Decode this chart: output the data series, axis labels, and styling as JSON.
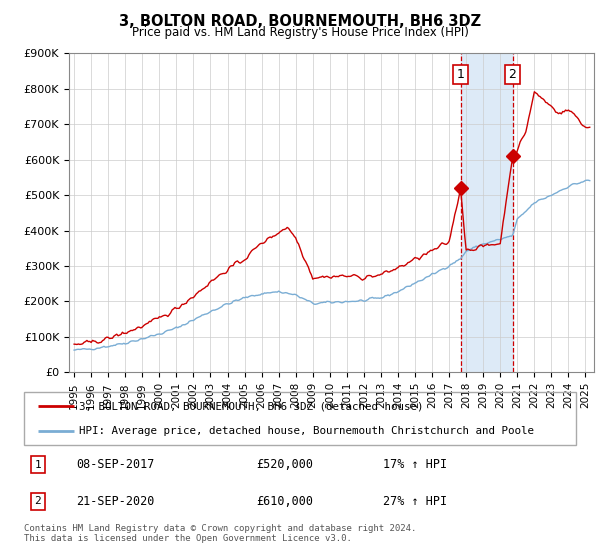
{
  "title": "3, BOLTON ROAD, BOURNEMOUTH, BH6 3DZ",
  "subtitle": "Price paid vs. HM Land Registry's House Price Index (HPI)",
  "legend_line1": "3, BOLTON ROAD, BOURNEMOUTH, BH6 3DZ (detached house)",
  "legend_line2": "HPI: Average price, detached house, Bournemouth Christchurch and Poole",
  "footer": "Contains HM Land Registry data © Crown copyright and database right 2024.\nThis data is licensed under the Open Government Licence v3.0.",
  "transaction1_date": "08-SEP-2017",
  "transaction1_price": 520000,
  "transaction1_label": "17% ↑ HPI",
  "transaction2_date": "21-SEP-2020",
  "transaction2_price": 610000,
  "transaction2_label": "27% ↑ HPI",
  "red_color": "#cc0000",
  "blue_color": "#7aadd4",
  "highlight_color": "#ddeaf7",
  "ylim": [
    0,
    900000
  ],
  "yticks": [
    0,
    100000,
    200000,
    300000,
    400000,
    500000,
    600000,
    700000,
    800000,
    900000
  ],
  "ytick_labels": [
    "£0",
    "£100K",
    "£200K",
    "£300K",
    "£400K",
    "£500K",
    "£600K",
    "£700K",
    "£800K",
    "£900K"
  ],
  "xtick_years": [
    1995,
    1996,
    1997,
    1998,
    1999,
    2000,
    2001,
    2002,
    2003,
    2004,
    2005,
    2006,
    2007,
    2008,
    2009,
    2010,
    2011,
    2012,
    2013,
    2014,
    2015,
    2016,
    2017,
    2018,
    2019,
    2020,
    2021,
    2022,
    2023,
    2024,
    2025
  ],
  "xlim": [
    1994.7,
    2025.5
  ],
  "transaction1_year": 2017.67,
  "transaction2_year": 2020.72
}
